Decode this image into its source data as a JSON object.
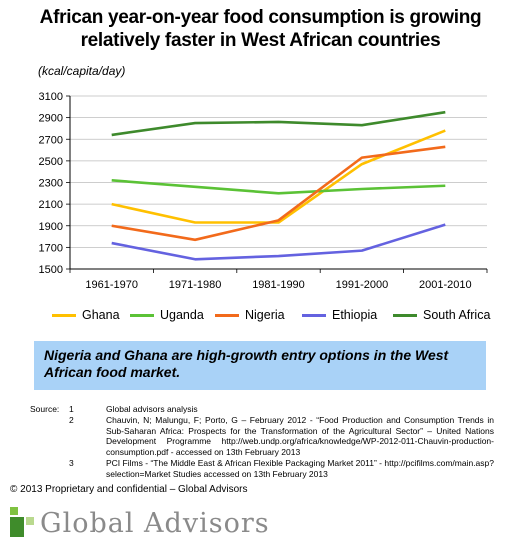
{
  "header": {
    "title_line1": "African year-on-year food consumption is growing",
    "title_line2": "relatively faster in West African countries",
    "unit": "(kcal/capita/day)"
  },
  "chart_data": {
    "type": "line",
    "categories": [
      "1961-1970",
      "1971-1980",
      "1981-1990",
      "1991-2000",
      "2001-2010"
    ],
    "ylim": [
      1500,
      3100
    ],
    "yticks": [
      1500,
      1700,
      1900,
      2100,
      2300,
      2500,
      2700,
      2900,
      3100
    ],
    "grid": true,
    "legend_position": "bottom",
    "series": [
      {
        "name": "Ghana",
        "color": "#ffc000",
        "values": [
          2100,
          1930,
          1930,
          2470,
          2780
        ]
      },
      {
        "name": "Uganda",
        "color": "#5bc236",
        "values": [
          2320,
          2260,
          2200,
          2240,
          2270
        ]
      },
      {
        "name": "Nigeria",
        "color": "#f26a1b",
        "values": [
          1900,
          1770,
          1950,
          2530,
          2630
        ]
      },
      {
        "name": "Ethiopia",
        "color": "#6462e0",
        "values": [
          1740,
          1590,
          1620,
          1670,
          1910
        ]
      },
      {
        "name": "South Africa",
        "color": "#3e8a2c",
        "values": [
          2740,
          2850,
          2860,
          2830,
          2950
        ]
      }
    ]
  },
  "callout": {
    "text": "Nigeria and Ghana are high-growth entry options in the West African food market."
  },
  "sources": {
    "label": "Source:",
    "items": [
      {
        "num": "1",
        "text": "Global advisors analysis"
      },
      {
        "num": "2",
        "text": "Chauvin, N; Malungu, F; Porto, G – February 2012 - “Food Production and Consumption Trends in Sub-Saharan Africa: Prospects for the Transformation of the Agricultural Sector” – United Nations Development Programme http://web.undp.org/africa/knowledge/WP-2012-011-Chauvin-production-consumption.pdf - accessed on 13th February 2013"
      },
      {
        "num": "3",
        "text": "PCI Films - “The Middle East & African Flexible Packaging Market 2011” - http://pcifilms.com/main.asp?selection=Market Studies accessed on 13th February 2013"
      }
    ]
  },
  "footer": {
    "copyright": "© 2013 Proprietary and confidential – Global Advisors",
    "logo_text": "Global Advisors"
  }
}
